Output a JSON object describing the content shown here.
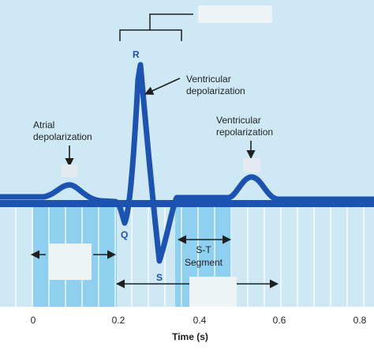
{
  "labels": {
    "r": "R",
    "q": "Q",
    "s": "S",
    "ventricular_depolarization": [
      "Ventricular",
      "depolarization"
    ],
    "atrial_depolarization": [
      "Atrial",
      "depolarization"
    ],
    "ventricular_repolarization": [
      "Ventricular",
      "repolarization"
    ],
    "st_segment": [
      "S-T",
      "Segment"
    ]
  },
  "axis": {
    "xlabel": "Time (s)",
    "ticks": [
      "0",
      "0.2",
      "0.4",
      "0.6",
      "0.8"
    ]
  },
  "colors": {
    "wave": "#1c52b0",
    "light_panel": "#cfe8f5",
    "shaded_interval": "#8fd0f0",
    "grid_line": "#ffffff",
    "text": "#1f1f1f",
    "blank_box": "#eef3f6"
  }
}
